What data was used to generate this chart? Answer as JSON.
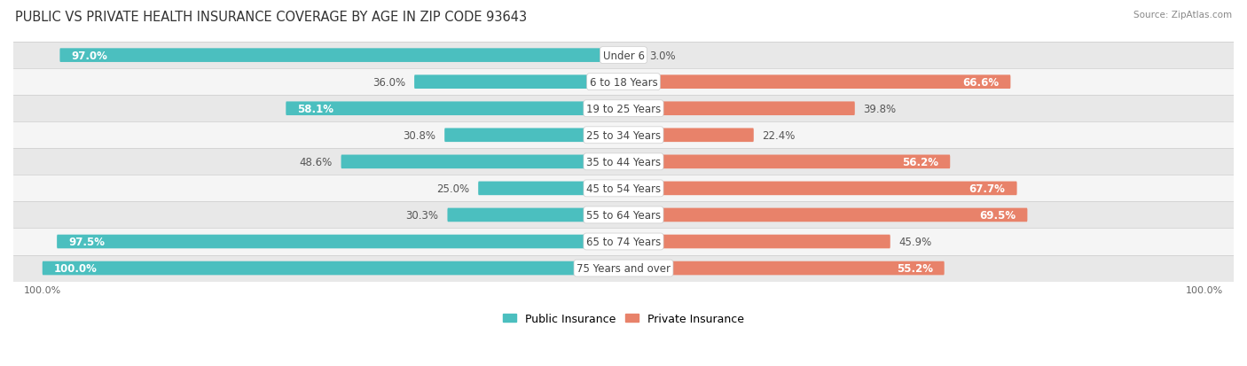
{
  "title": "PUBLIC VS PRIVATE HEALTH INSURANCE COVERAGE BY AGE IN ZIP CODE 93643",
  "source": "Source: ZipAtlas.com",
  "categories": [
    "Under 6",
    "6 to 18 Years",
    "19 to 25 Years",
    "25 to 34 Years",
    "35 to 44 Years",
    "45 to 54 Years",
    "55 to 64 Years",
    "65 to 74 Years",
    "75 Years and over"
  ],
  "public_values": [
    97.0,
    36.0,
    58.1,
    30.8,
    48.6,
    25.0,
    30.3,
    97.5,
    100.0
  ],
  "private_values": [
    3.0,
    66.6,
    39.8,
    22.4,
    56.2,
    67.7,
    69.5,
    45.9,
    55.2
  ],
  "public_color": "#4BBFBF",
  "private_color": "#E8826A",
  "row_bg_colors": [
    "#E8E8E8",
    "#F5F5F5"
  ],
  "label_fontsize": 8.5,
  "title_fontsize": 10.5,
  "bar_height": 0.52,
  "max_value": 100.0,
  "xlim_left": -105,
  "xlim_right": 105
}
